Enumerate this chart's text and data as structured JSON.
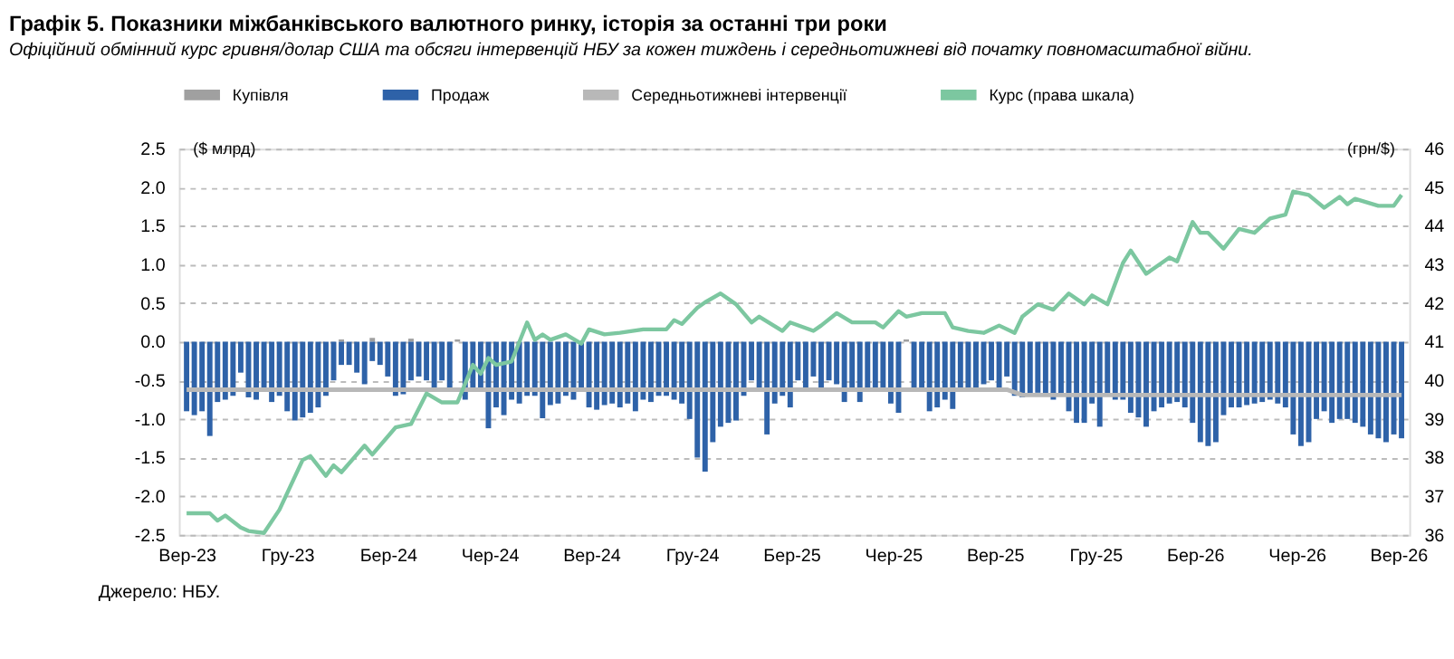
{
  "chart_data": {
    "type": "bar",
    "title": "Графік 5. Показники міжбанківського валютного ринку, історія за останні три роки",
    "subtitle": "Офіційний обмінний курс гривня/долар США та обсяги інтервенцій НБУ за кожен тиждень і середньотижневі від початку повномасштабної війни.",
    "ylabel": "($ млрд)",
    "y2label": "(грн/$)",
    "annotations": [
      "Джерело: НБУ."
    ],
    "x": [
      "2023-09-01",
      "2023-09-08",
      "2023-09-15",
      "2023-09-22",
      "2023-09-29",
      "2023-10-06",
      "2023-10-13",
      "2023-10-20",
      "2023-10-27",
      "2023-11-03",
      "2023-11-10",
      "2023-11-17",
      "2023-11-24",
      "2023-12-01",
      "2023-12-08",
      "2023-12-15",
      "2023-12-22",
      "2023-12-29",
      "2024-01-05",
      "2024-01-12",
      "2024-01-19",
      "2024-01-26",
      "2024-02-02",
      "2024-02-09",
      "2024-02-16",
      "2024-02-23",
      "2024-03-01",
      "2024-03-08",
      "2024-03-15",
      "2024-03-22",
      "2024-03-29",
      "2024-04-05",
      "2024-04-12",
      "2024-04-19",
      "2024-04-26",
      "2024-05-03",
      "2024-05-10",
      "2024-05-17",
      "2024-05-24",
      "2024-05-31",
      "2024-06-07",
      "2024-06-14",
      "2024-06-21",
      "2024-06-28",
      "2024-07-05",
      "2024-07-12",
      "2024-07-19",
      "2024-07-26",
      "2024-08-02",
      "2024-08-09",
      "2024-08-16",
      "2024-08-23",
      "2024-08-30",
      "2024-09-06",
      "2024-09-13",
      "2024-09-20",
      "2024-09-27",
      "2024-10-04",
      "2024-10-11",
      "2024-10-18",
      "2024-10-25",
      "2024-11-01",
      "2024-11-08",
      "2024-11-15",
      "2024-11-22",
      "2024-11-29",
      "2024-12-06",
      "2024-12-13",
      "2024-12-20",
      "2024-12-27",
      "2025-01-03",
      "2025-01-10",
      "2025-01-17",
      "2025-01-24",
      "2025-01-31",
      "2025-02-07",
      "2025-02-14",
      "2025-02-21",
      "2025-02-28",
      "2025-03-07",
      "2025-03-14",
      "2025-03-21",
      "2025-03-28",
      "2025-04-04",
      "2025-04-11",
      "2025-04-18",
      "2025-04-25",
      "2025-05-02",
      "2025-05-09",
      "2025-05-16",
      "2025-05-23",
      "2025-05-30",
      "2025-06-06",
      "2025-06-13",
      "2025-06-20",
      "2025-06-27",
      "2025-07-04",
      "2025-07-11",
      "2025-07-18",
      "2025-07-25",
      "2025-08-01",
      "2025-08-08",
      "2025-08-15",
      "2025-08-22",
      "2025-08-29",
      "2025-09-05",
      "2025-09-12",
      "2025-09-19",
      "2025-09-26",
      "2025-10-03",
      "2025-10-10",
      "2025-10-17",
      "2025-10-24",
      "2025-10-31",
      "2025-11-07",
      "2025-11-14",
      "2025-11-21",
      "2025-11-28",
      "2025-12-05",
      "2025-12-12",
      "2025-12-19",
      "2025-12-26",
      "2026-01-02",
      "2026-01-09",
      "2026-01-16",
      "2026-01-23",
      "2026-01-30",
      "2026-02-06",
      "2026-02-13",
      "2026-02-20",
      "2026-02-27",
      "2026-03-06",
      "2026-03-13",
      "2026-03-20",
      "2026-03-27",
      "2026-04-03",
      "2026-04-10",
      "2026-04-17",
      "2026-04-24",
      "2026-05-01",
      "2026-05-08",
      "2026-05-15",
      "2026-05-22",
      "2026-05-29",
      "2026-06-05",
      "2026-06-12",
      "2026-06-19",
      "2026-06-26",
      "2026-07-03",
      "2026-07-10",
      "2026-07-17",
      "2026-07-24",
      "2026-07-31",
      "2026-08-07",
      "2026-08-14",
      "2026-08-21",
      "2026-08-28",
      "2026-09-04"
    ],
    "series": [
      {
        "name": "Купівля",
        "color": "#a0a0a0",
        "x": [
          "2024-01-19",
          "2024-02-16",
          "2024-03-22",
          "2024-05-03",
          "2025-06-13"
        ],
        "values": [
          0.03,
          0.05,
          0.04,
          0.03,
          0.03
        ]
      },
      {
        "name": "Продаж",
        "color": "#2e62a8",
        "values": [
          -0.9,
          -0.95,
          -0.9,
          -1.22,
          -0.78,
          -0.75,
          -0.7,
          -0.4,
          -0.72,
          -0.75,
          -0.6,
          -0.78,
          -0.7,
          -0.9,
          -1.02,
          -0.98,
          -0.92,
          -0.85,
          -0.7,
          -0.5,
          -0.3,
          -0.3,
          -0.4,
          -0.55,
          -0.25,
          -0.3,
          -0.45,
          -0.7,
          -0.68,
          -0.5,
          -0.45,
          -0.5,
          -0.6,
          -0.5,
          -0.65,
          null,
          -0.75,
          -0.6,
          -0.65,
          -1.12,
          -0.85,
          -0.95,
          -0.75,
          -0.8,
          -0.7,
          -0.7,
          -0.99,
          -0.82,
          -0.8,
          -0.7,
          -0.75,
          -0.65,
          -0.85,
          -0.88,
          -0.82,
          -0.8,
          -0.85,
          -0.8,
          -0.9,
          -0.75,
          -0.78,
          -0.7,
          -0.7,
          -0.75,
          -0.8,
          -1.0,
          -1.5,
          -1.68,
          -1.3,
          -1.1,
          -1.05,
          -1.02,
          -0.7,
          -0.5,
          -0.6,
          -1.2,
          -0.8,
          -0.7,
          -0.85,
          -0.5,
          -0.6,
          -0.45,
          -0.6,
          -0.5,
          -0.55,
          -0.78,
          -0.65,
          -0.78,
          -0.6,
          -0.65,
          -0.65,
          -0.8,
          -0.92,
          null,
          -0.6,
          -0.65,
          -0.9,
          -0.85,
          -0.75,
          -0.87,
          -0.65,
          -0.6,
          -0.62,
          -0.55,
          -0.5,
          -0.65,
          -0.45,
          -0.7,
          -0.72,
          -0.68,
          -0.66,
          -0.7,
          -0.75,
          -0.7,
          -0.9,
          -1.05,
          -1.05,
          -0.8,
          -1.1,
          -0.7,
          -0.75,
          -0.75,
          -0.92,
          -0.98,
          -1.1,
          -0.9,
          -0.85,
          -0.8,
          -0.78,
          -0.85,
          -1.05,
          -1.3,
          -1.35,
          -1.3,
          -0.95,
          -0.85,
          -0.85,
          -0.82,
          -0.8,
          -0.78,
          -0.75,
          -0.8,
          -0.85,
          -1.2,
          -1.35,
          -1.3,
          -1.0,
          -0.9,
          -1.05,
          -1.0,
          -1.0,
          -1.05,
          -1.1,
          -1.2,
          -1.25,
          -1.3,
          -1.2,
          -1.25
        ]
      },
      {
        "name": "Середньотижневі інтервенції",
        "type": "line",
        "color": "#b8b8b8",
        "x": [
          "2023-09-01",
          "2025-09-12",
          "2025-09-26",
          "2026-09-04"
        ],
        "values": [
          -0.62,
          -0.62,
          -0.69,
          -0.69
        ]
      },
      {
        "name": "Курс (права шкала)",
        "type": "line",
        "axis": "y2",
        "color": "#7cc7a0",
        "x": [
          "2023-09-01",
          "2023-09-22",
          "2023-09-29",
          "2023-10-06",
          "2023-10-20",
          "2023-10-27",
          "2023-11-10",
          "2023-11-24",
          "2023-12-15",
          "2023-12-22",
          "2024-01-05",
          "2024-01-12",
          "2024-01-19",
          "2024-02-09",
          "2024-02-16",
          "2024-03-08",
          "2024-03-22",
          "2024-04-05",
          "2024-04-19",
          "2024-05-03",
          "2024-05-17",
          "2024-05-24",
          "2024-05-31",
          "2024-06-07",
          "2024-06-21",
          "2024-07-05",
          "2024-07-12",
          "2024-07-19",
          "2024-07-26",
          "2024-08-09",
          "2024-08-23",
          "2024-08-30",
          "2024-09-13",
          "2024-09-27",
          "2024-10-18",
          "2024-11-08",
          "2024-11-15",
          "2024-11-22",
          "2024-12-06",
          "2024-12-13",
          "2024-12-27",
          "2025-01-10",
          "2025-01-24",
          "2025-01-31",
          "2025-02-21",
          "2025-02-28",
          "2025-03-21",
          "2025-03-28",
          "2025-04-11",
          "2025-04-25",
          "2025-05-16",
          "2025-05-23",
          "2025-06-06",
          "2025-06-13",
          "2025-06-27",
          "2025-07-18",
          "2025-07-25",
          "2025-08-08",
          "2025-08-22",
          "2025-09-05",
          "2025-09-19",
          "2025-09-26",
          "2025-10-10",
          "2025-10-24",
          "2025-11-07",
          "2025-11-21",
          "2025-11-28",
          "2025-12-12",
          "2025-12-26",
          "2026-01-02",
          "2026-01-16",
          "2026-01-30",
          "2026-02-06",
          "2026-02-13",
          "2026-02-27",
          "2026-03-06",
          "2026-03-13",
          "2026-03-27",
          "2026-04-10",
          "2026-04-24",
          "2026-05-08",
          "2026-05-22",
          "2026-05-29",
          "2026-06-12",
          "2026-06-26",
          "2026-07-10",
          "2026-07-17",
          "2026-07-24",
          "2026-08-14",
          "2026-08-28",
          "2026-09-04"
        ],
        "values": [
          36.56,
          36.56,
          36.37,
          36.5,
          36.19,
          36.1,
          36.05,
          36.65,
          37.94,
          38.04,
          37.53,
          37.8,
          37.62,
          38.31,
          38.08,
          38.78,
          38.87,
          39.66,
          39.43,
          39.43,
          40.4,
          40.17,
          40.58,
          40.4,
          40.49,
          41.5,
          41.05,
          41.19,
          41.05,
          41.19,
          40.95,
          41.32,
          41.19,
          41.23,
          41.32,
          41.32,
          41.56,
          41.46,
          41.88,
          42.02,
          42.25,
          41.97,
          41.5,
          41.65,
          41.28,
          41.5,
          41.28,
          41.42,
          41.74,
          41.5,
          41.5,
          41.37,
          41.79,
          41.65,
          41.74,
          41.74,
          41.37,
          41.28,
          41.23,
          41.42,
          41.23,
          41.65,
          41.97,
          41.83,
          42.25,
          41.97,
          42.2,
          41.97,
          43.04,
          43.36,
          42.76,
          43.04,
          43.18,
          43.08,
          44.1,
          43.82,
          43.82,
          43.41,
          43.92,
          43.82,
          44.19,
          44.29,
          44.89,
          44.8,
          44.47,
          44.75,
          44.56,
          44.7,
          44.52,
          44.52,
          44.8
        ]
      }
    ],
    "xlim": [
      "2023-08-25",
      "2026-09-11"
    ],
    "xticks": [
      {
        "value": "2023-09-01",
        "label": "Вер-23"
      },
      {
        "value": "2023-12-01",
        "label": "Гру-23"
      },
      {
        "value": "2024-03-01",
        "label": "Бер-24"
      },
      {
        "value": "2024-06-01",
        "label": "Чер-24"
      },
      {
        "value": "2024-09-01",
        "label": "Вер-24"
      },
      {
        "value": "2024-12-01",
        "label": "Гру-24"
      },
      {
        "value": "2025-03-01",
        "label": "Бер-25"
      },
      {
        "value": "2025-06-01",
        "label": "Чер-25"
      },
      {
        "value": "2025-09-01",
        "label": "Вер-25"
      },
      {
        "value": "2025-12-01",
        "label": "Гру-25"
      },
      {
        "value": "2026-03-01",
        "label": "Бер-26"
      },
      {
        "value": "2026-06-01",
        "label": "Чер-26"
      },
      {
        "value": "2026-09-01",
        "label": "Вер-26"
      }
    ],
    "ylim": [
      -2.5,
      2.5
    ],
    "yticks": [
      {
        "value": -2.5,
        "label": "-2.5"
      },
      {
        "value": -2,
        "label": "-2.0"
      },
      {
        "value": -1.5,
        "label": "-1.5"
      },
      {
        "value": -1,
        "label": "-1.0"
      },
      {
        "value": -0.5,
        "label": "-0.5"
      },
      {
        "value": 0,
        "label": "0.0"
      },
      {
        "value": 0.5,
        "label": "0.5"
      },
      {
        "value": 1,
        "label": "1.0"
      },
      {
        "value": 1.5,
        "label": "1.5"
      },
      {
        "value": 2,
        "label": "2.0"
      },
      {
        "value": 2.5,
        "label": "2.5"
      }
    ],
    "y2lim": [
      36,
      46
    ],
    "y2ticks": [
      36,
      37,
      38,
      39,
      40,
      41,
      42,
      43,
      44,
      45,
      46
    ],
    "grid": "y",
    "legend": "top"
  }
}
